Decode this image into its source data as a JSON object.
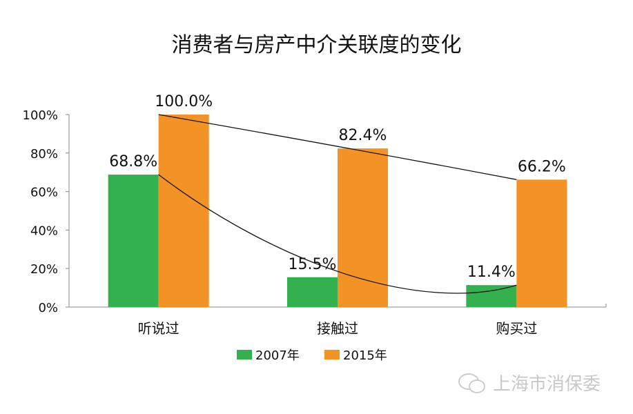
{
  "chart_data": {
    "type": "bar",
    "title": "消费者与房产中介关联度的变化",
    "categories": [
      "听说过",
      "接触过",
      "购买过"
    ],
    "series": [
      {
        "name": "2007年",
        "values": [
          68.8,
          15.5,
          11.4
        ],
        "labels": [
          "68.8%",
          "15.5%",
          "11.4%"
        ],
        "color": "#33b14f"
      },
      {
        "name": "2015年",
        "values": [
          100.0,
          82.4,
          66.2
        ],
        "labels": [
          "100.0%",
          "82.4%",
          "66.2%"
        ],
        "color": "#f39325"
      }
    ],
    "ylim": [
      0,
      100
    ],
    "yticks": [
      0,
      20,
      40,
      60,
      80,
      100
    ],
    "ytick_labels": [
      "0%",
      "20%",
      "40%",
      "60%",
      "80%",
      "100%"
    ],
    "xlabel": "",
    "ylabel": "",
    "grid": false,
    "legend_position": "bottom",
    "trend_lines": true
  },
  "watermark": "上海市消保委"
}
